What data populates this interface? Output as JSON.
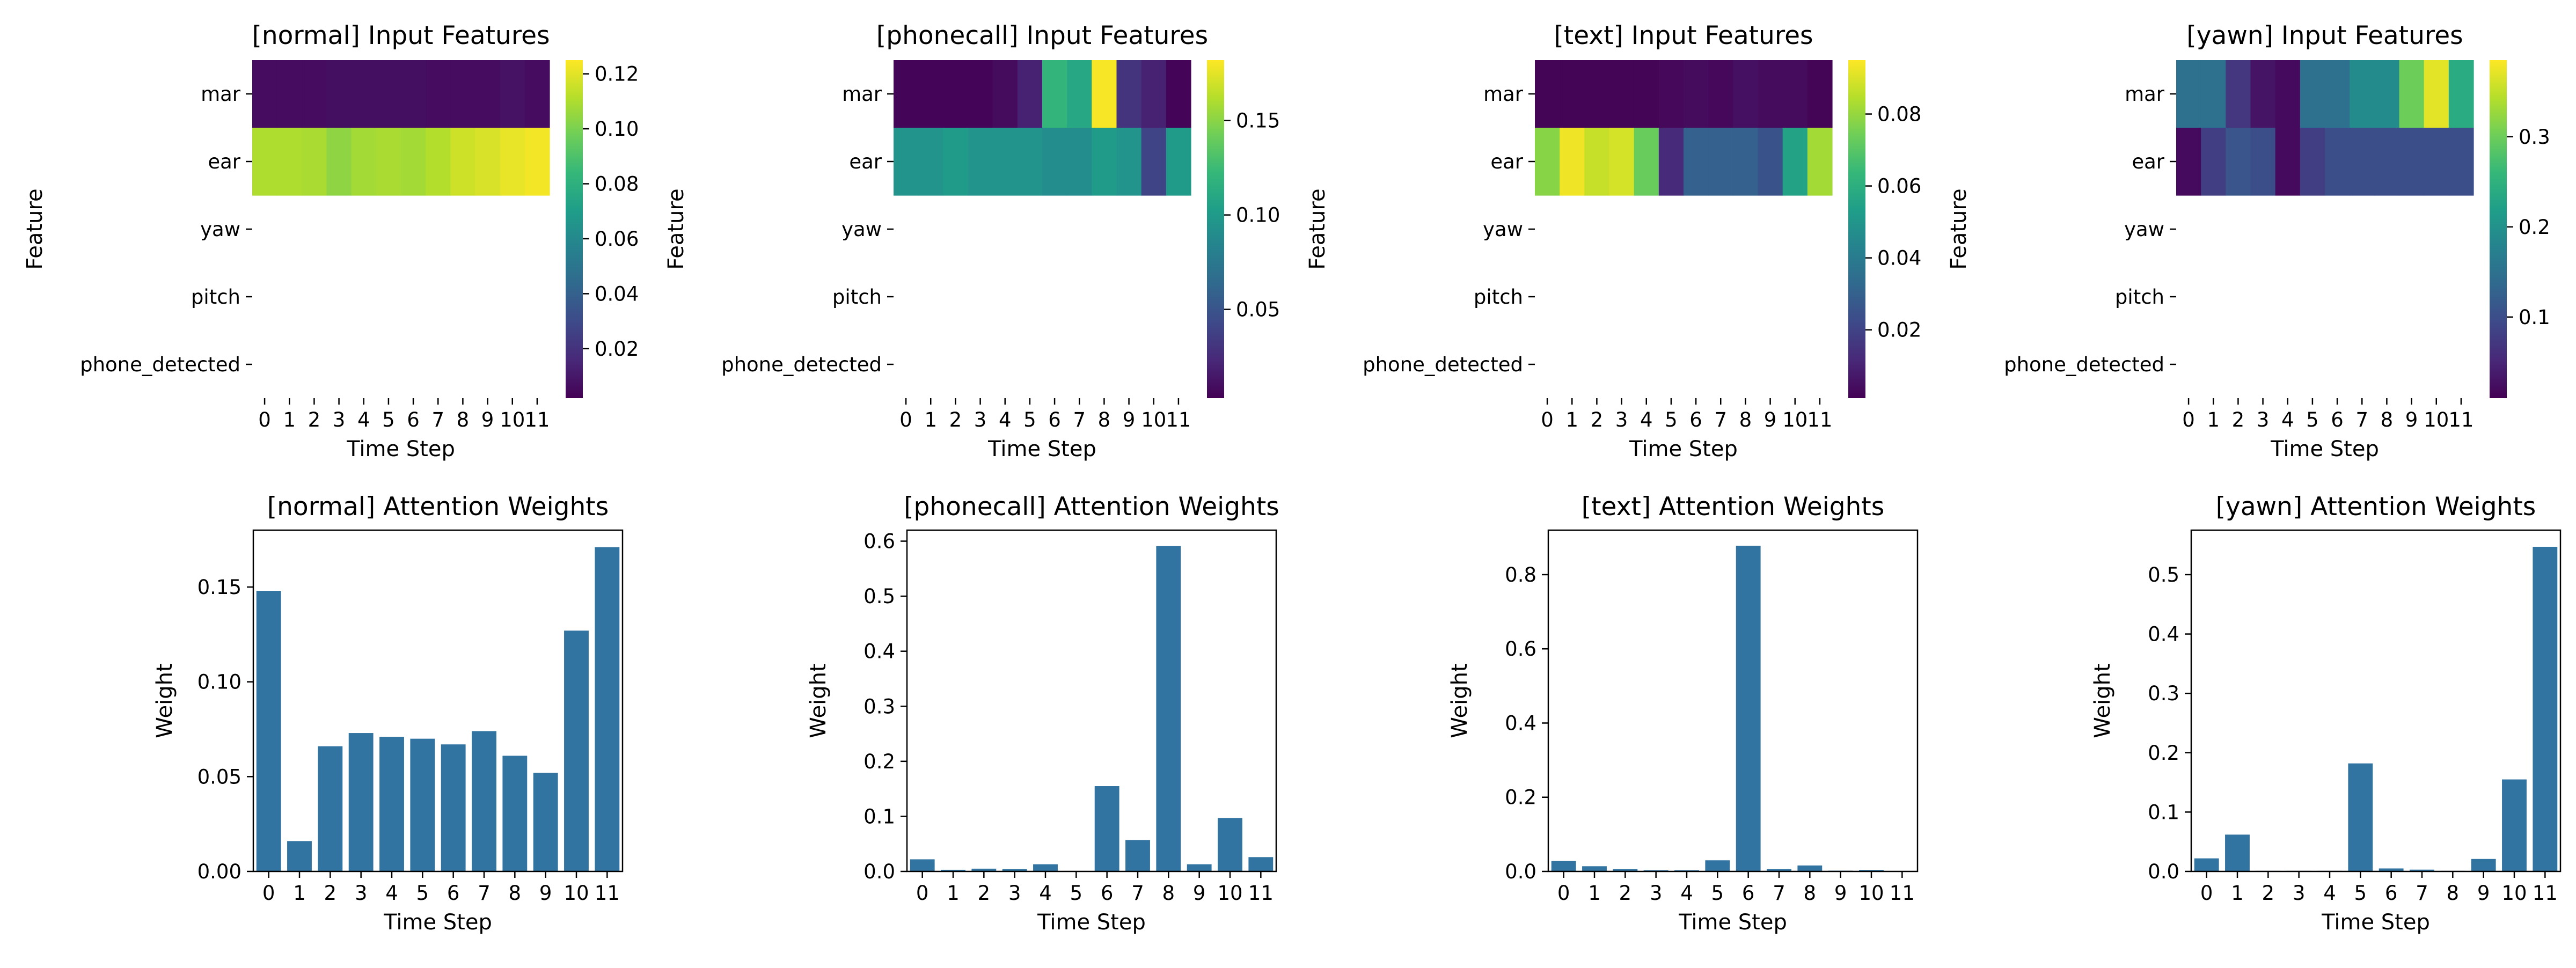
{
  "colors": {
    "bar": "#3274a1",
    "axis": "#000000",
    "colormap": "viridis",
    "viridis": [
      "#440154",
      "#482878",
      "#3e4989",
      "#31688e",
      "#26828e",
      "#1f9e89",
      "#35b779",
      "#6ece58",
      "#b5de2b",
      "#fde725"
    ]
  },
  "chart_data": [
    {
      "type": "heatmap",
      "title": "[normal] Input Features",
      "xlabel": "Time Step",
      "ylabel": "Feature",
      "x": [
        "0",
        "1",
        "2",
        "3",
        "4",
        "5",
        "6",
        "7",
        "8",
        "9",
        "10",
        "11"
      ],
      "y": [
        "mar",
        "ear",
        "yaw",
        "pitch",
        "phone_detected"
      ],
      "values": [
        [
          0.006,
          0.006,
          0.006,
          0.007,
          0.007,
          0.007,
          0.007,
          0.006,
          0.006,
          0.006,
          0.008,
          0.006
        ],
        [
          0.11,
          0.11,
          0.109,
          0.104,
          0.108,
          0.109,
          0.108,
          0.111,
          0.116,
          0.118,
          0.121,
          0.123
        ],
        [
          null,
          null,
          null,
          null,
          null,
          null,
          null,
          null,
          null,
          null,
          null,
          null
        ],
        [
          null,
          null,
          null,
          null,
          null,
          null,
          null,
          null,
          null,
          null,
          null,
          null
        ],
        [
          null,
          null,
          null,
          null,
          null,
          null,
          null,
          null,
          null,
          null,
          null,
          null
        ]
      ],
      "colorbar": {
        "vmin": 0.002,
        "vmax": 0.125,
        "ticks": [
          0.02,
          0.04,
          0.06,
          0.08,
          0.1,
          0.12
        ],
        "tick_labels": [
          "0.02",
          "0.04",
          "0.06",
          "0.08",
          "0.10",
          "0.12"
        ]
      }
    },
    {
      "type": "heatmap",
      "title": "[phonecall] Input Features",
      "xlabel": "Time Step",
      "ylabel": "Feature",
      "x": [
        "0",
        "1",
        "2",
        "3",
        "4",
        "5",
        "6",
        "7",
        "8",
        "9",
        "10",
        "11"
      ],
      "y": [
        "mar",
        "ear",
        "yaw",
        "pitch",
        "phone_detected"
      ],
      "values": [
        [
          0.005,
          0.005,
          0.005,
          0.005,
          0.008,
          0.02,
          0.12,
          0.11,
          0.18,
          0.03,
          0.02,
          0.005
        ],
        [
          0.095,
          0.095,
          0.1,
          0.095,
          0.095,
          0.095,
          0.09,
          0.09,
          0.1,
          0.095,
          0.04,
          0.1
        ],
        [
          null,
          null,
          null,
          null,
          null,
          null,
          null,
          null,
          null,
          null,
          null,
          null
        ],
        [
          null,
          null,
          null,
          null,
          null,
          null,
          null,
          null,
          null,
          null,
          null,
          null
        ],
        [
          null,
          null,
          null,
          null,
          null,
          null,
          null,
          null,
          null,
          null,
          null,
          null
        ]
      ],
      "colorbar": {
        "vmin": 0.003,
        "vmax": 0.182,
        "ticks": [
          0.05,
          0.1,
          0.15
        ],
        "tick_labels": [
          "0.05",
          "0.10",
          "0.15"
        ]
      }
    },
    {
      "type": "heatmap",
      "title": "[text] Input Features",
      "xlabel": "Time Step",
      "ylabel": "Feature",
      "x": [
        "0",
        "1",
        "2",
        "3",
        "4",
        "5",
        "6",
        "7",
        "8",
        "9",
        "10",
        "11"
      ],
      "y": [
        "mar",
        "ear",
        "yaw",
        "pitch",
        "phone_detected"
      ],
      "values": [
        [
          0.002,
          0.002,
          0.002,
          0.002,
          0.002,
          0.003,
          0.004,
          0.003,
          0.005,
          0.004,
          0.004,
          0.002
        ],
        [
          0.078,
          0.093,
          0.087,
          0.089,
          0.073,
          0.012,
          0.03,
          0.03,
          0.03,
          0.025,
          0.055,
          0.082
        ],
        [
          null,
          null,
          null,
          null,
          null,
          null,
          null,
          null,
          null,
          null,
          null,
          null
        ],
        [
          null,
          null,
          null,
          null,
          null,
          null,
          null,
          null,
          null,
          null,
          null,
          null
        ],
        [
          null,
          null,
          null,
          null,
          null,
          null,
          null,
          null,
          null,
          null,
          null,
          null
        ]
      ],
      "colorbar": {
        "vmin": 0.001,
        "vmax": 0.095,
        "ticks": [
          0.02,
          0.04,
          0.06,
          0.08
        ],
        "tick_labels": [
          "0.02",
          "0.04",
          "0.06",
          "0.08"
        ]
      }
    },
    {
      "type": "heatmap",
      "title": "[yawn] Input Features",
      "xlabel": "Time Step",
      "ylabel": "Feature",
      "x": [
        "0",
        "1",
        "2",
        "3",
        "4",
        "5",
        "6",
        "7",
        "8",
        "9",
        "10",
        "11"
      ],
      "y": [
        "mar",
        "ear",
        "yaw",
        "pitch",
        "phone_detected"
      ],
      "values": [
        [
          0.15,
          0.15,
          0.07,
          0.03,
          0.02,
          0.15,
          0.15,
          0.19,
          0.19,
          0.3,
          0.37,
          0.24
        ],
        [
          0.02,
          0.08,
          0.11,
          0.1,
          0.02,
          0.08,
          0.1,
          0.1,
          0.1,
          0.1,
          0.1,
          0.1
        ],
        [
          null,
          null,
          null,
          null,
          null,
          null,
          null,
          null,
          null,
          null,
          null,
          null
        ],
        [
          null,
          null,
          null,
          null,
          null,
          null,
          null,
          null,
          null,
          null,
          null,
          null
        ],
        [
          null,
          null,
          null,
          null,
          null,
          null,
          null,
          null,
          null,
          null,
          null,
          null
        ]
      ],
      "colorbar": {
        "vmin": 0.01,
        "vmax": 0.385,
        "ticks": [
          0.1,
          0.2,
          0.3
        ],
        "tick_labels": [
          "0.1",
          "0.2",
          "0.3"
        ]
      }
    },
    {
      "type": "bar",
      "title": "[normal] Attention Weights",
      "xlabel": "Time Step",
      "ylabel": "Weight",
      "categories": [
        "0",
        "1",
        "2",
        "3",
        "4",
        "5",
        "6",
        "7",
        "8",
        "9",
        "10",
        "11"
      ],
      "values": [
        0.148,
        0.016,
        0.066,
        0.073,
        0.071,
        0.07,
        0.067,
        0.074,
        0.061,
        0.052,
        0.127,
        0.171
      ],
      "ylim": [
        0,
        0.18
      ],
      "yticks": [
        0,
        0.05,
        0.1,
        0.15
      ],
      "ytick_labels": [
        "0.00",
        "0.05",
        "0.10",
        "0.15"
      ]
    },
    {
      "type": "bar",
      "title": "[phonecall] Attention Weights",
      "xlabel": "Time Step",
      "ylabel": "Weight",
      "categories": [
        "0",
        "1",
        "2",
        "3",
        "4",
        "5",
        "6",
        "7",
        "8",
        "9",
        "10",
        "11"
      ],
      "values": [
        0.022,
        0.003,
        0.005,
        0.004,
        0.013,
        0.001,
        0.155,
        0.057,
        0.591,
        0.013,
        0.097,
        0.026
      ],
      "ylim": [
        0,
        0.62
      ],
      "yticks": [
        0,
        0.1,
        0.2,
        0.3,
        0.4,
        0.5,
        0.6
      ],
      "ytick_labels": [
        "0.0",
        "0.1",
        "0.2",
        "0.3",
        "0.4",
        "0.5",
        "0.6"
      ]
    },
    {
      "type": "bar",
      "title": "[text] Attention Weights",
      "xlabel": "Time Step",
      "ylabel": "Weight",
      "categories": [
        "0",
        "1",
        "2",
        "3",
        "4",
        "5",
        "6",
        "7",
        "8",
        "9",
        "10",
        "11"
      ],
      "values": [
        0.028,
        0.014,
        0.006,
        0.003,
        0.003,
        0.03,
        0.878,
        0.006,
        0.016,
        0.002,
        0.004,
        0.001
      ],
      "ylim": [
        0,
        0.92
      ],
      "yticks": [
        0,
        0.2,
        0.4,
        0.6,
        0.8
      ],
      "ytick_labels": [
        "0.0",
        "0.2",
        "0.4",
        "0.6",
        "0.8"
      ]
    },
    {
      "type": "bar",
      "title": "[yawn] Attention Weights",
      "xlabel": "Time Step",
      "ylabel": "Weight",
      "categories": [
        "0",
        "1",
        "2",
        "3",
        "4",
        "5",
        "6",
        "7",
        "8",
        "9",
        "10",
        "11"
      ],
      "values": [
        0.022,
        0.062,
        0.001,
        0.001,
        0.001,
        0.182,
        0.005,
        0.003,
        0.001,
        0.021,
        0.155,
        0.547
      ],
      "ylim": [
        0,
        0.575
      ],
      "yticks": [
        0,
        0.1,
        0.2,
        0.3,
        0.4,
        0.5
      ],
      "ytick_labels": [
        "0.0",
        "0.1",
        "0.2",
        "0.3",
        "0.4",
        "0.5"
      ]
    }
  ]
}
